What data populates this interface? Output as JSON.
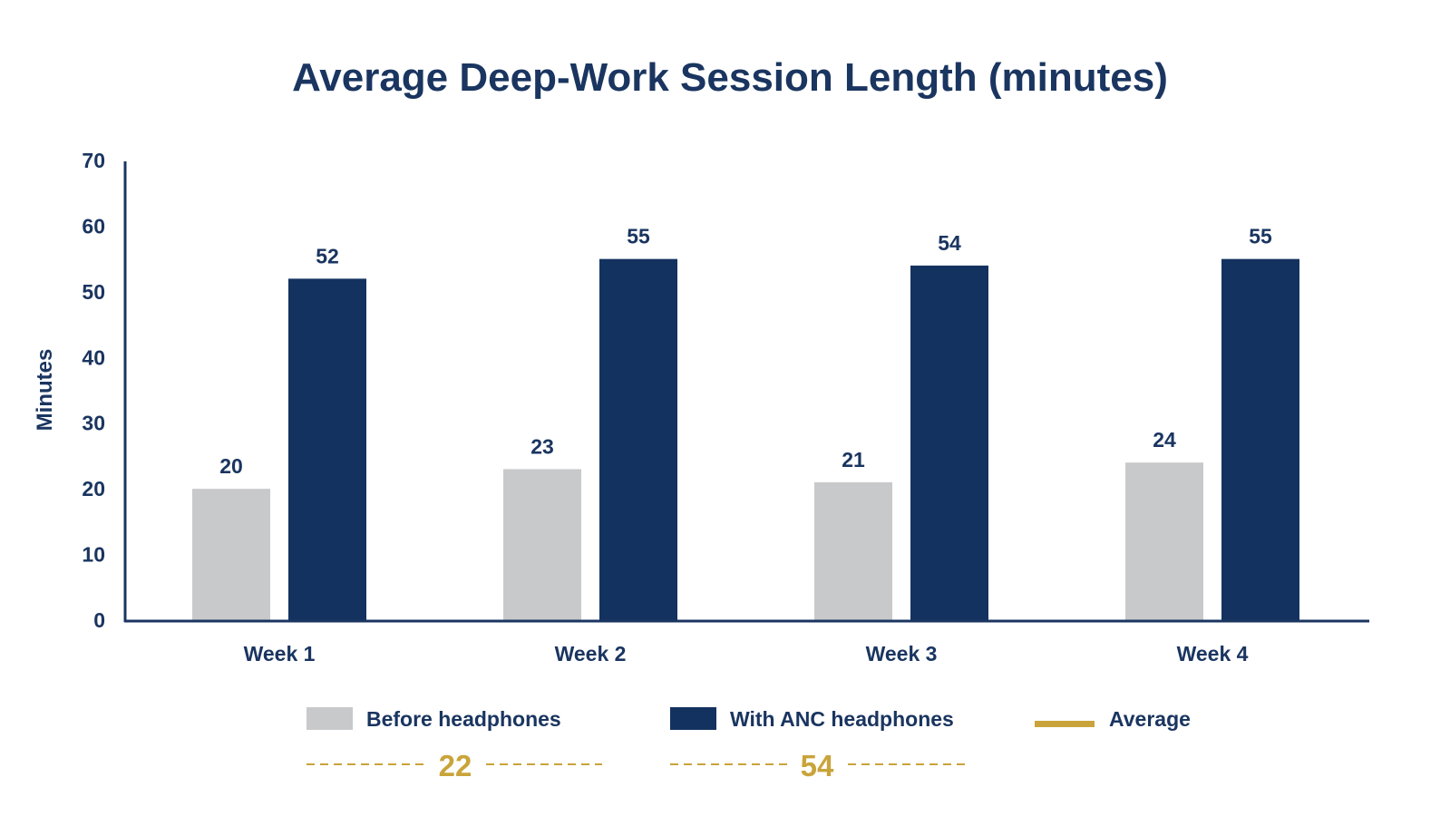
{
  "chart_data": {
    "type": "bar",
    "title": "Average Deep-Work Session Length (minutes)",
    "ylabel": "Minutes",
    "xlabel": "",
    "ylim": [
      0,
      70
    ],
    "yticks": [
      0,
      10,
      20,
      30,
      40,
      50,
      60,
      70
    ],
    "grid": false,
    "categories": [
      "Week 1",
      "Week 2",
      "Week 3",
      "Week 4"
    ],
    "series": [
      {
        "name": "Before headphones",
        "values": [
          20,
          23,
          21,
          24
        ],
        "color": "#c8c9cb"
      },
      {
        "name": "With ANC headphones",
        "values": [
          52,
          55,
          54,
          55
        ],
        "color": "#133260"
      }
    ],
    "legend": {
      "placement": "bottom",
      "items": [
        {
          "label": "Before headphones",
          "color": "#c8c9cb"
        },
        {
          "label": "With ANC headphones",
          "color": "#133260"
        },
        {
          "label": "Average",
          "color": "#c9a43a"
        }
      ]
    },
    "averages": [
      {
        "series": "Before headphones",
        "value": 22
      },
      {
        "series": "With ANC headphones",
        "value": 54
      }
    ],
    "colors": {
      "text": "#1a3560",
      "axis": "#1a3560",
      "average": "#c9a43a"
    }
  }
}
